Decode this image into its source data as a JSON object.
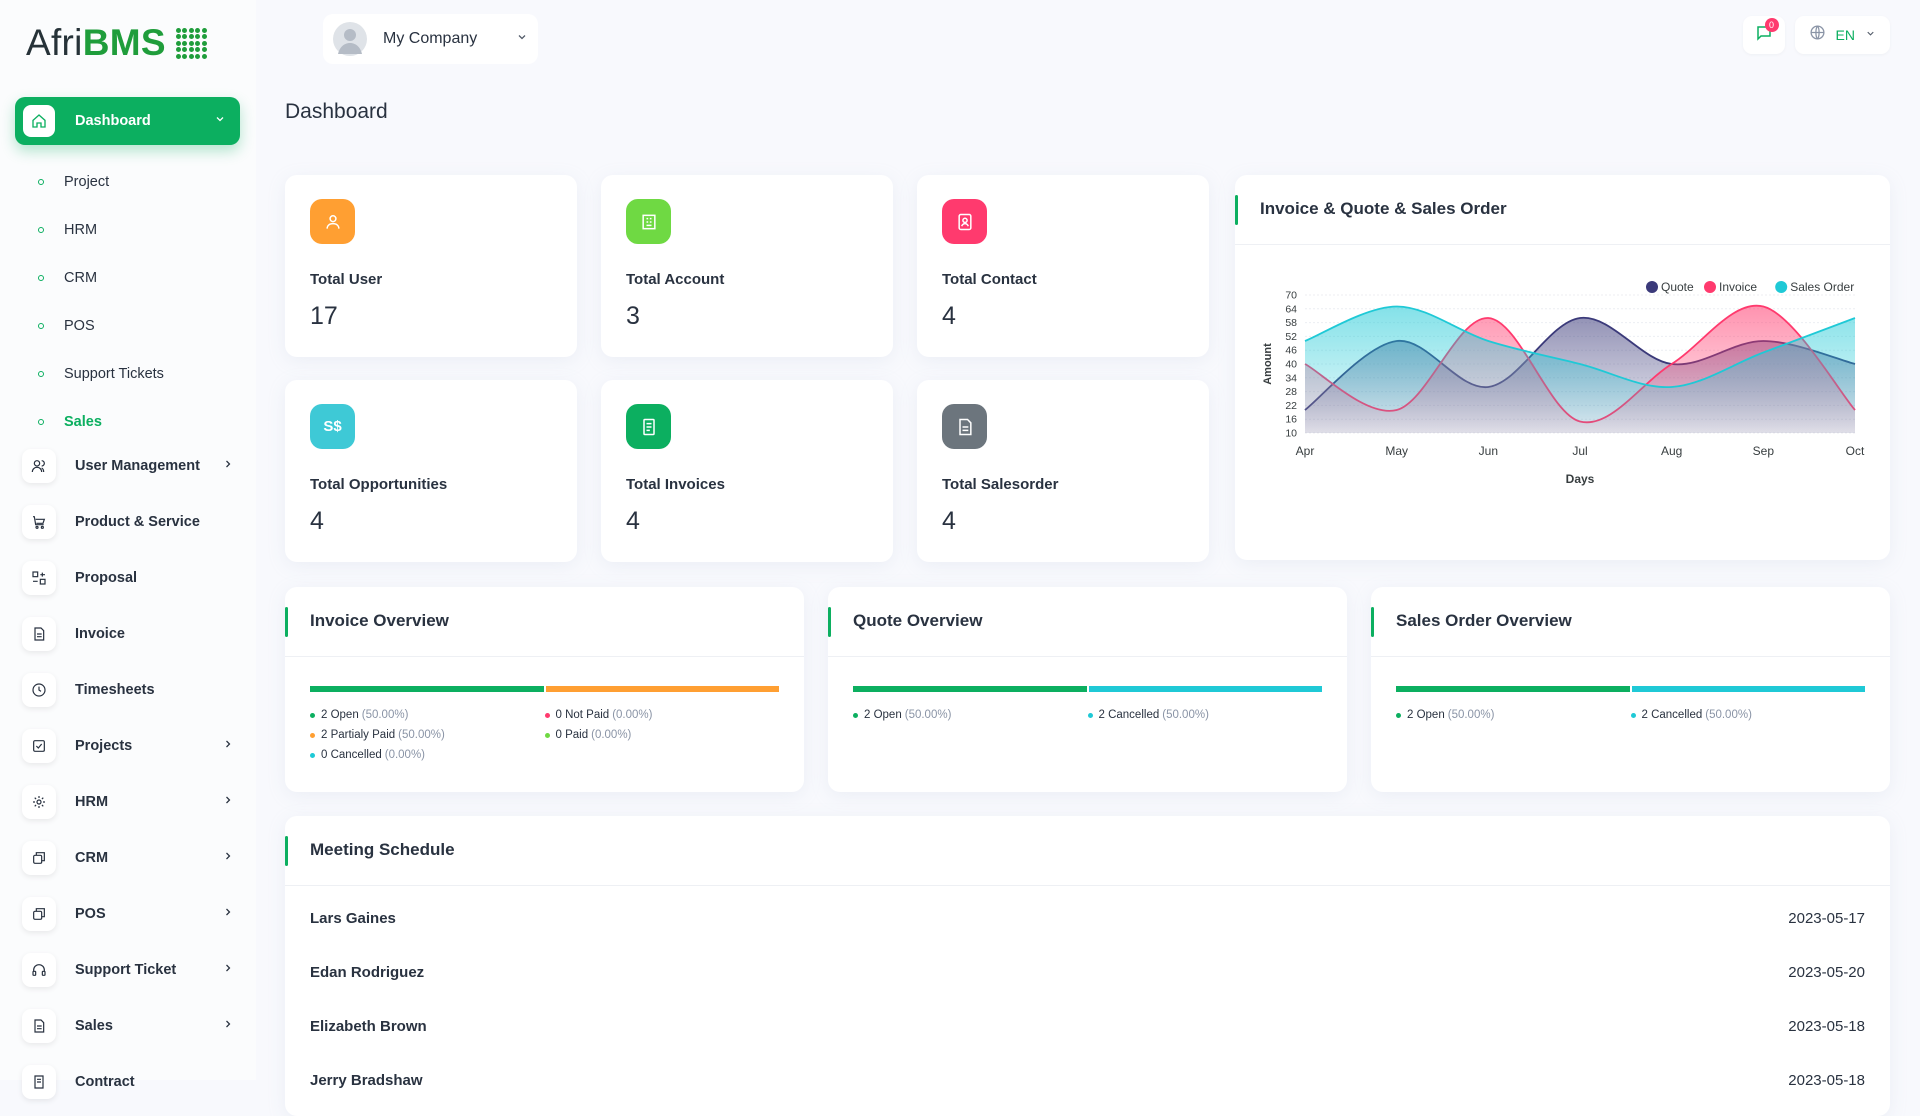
{
  "logo": {
    "part1": "Afri",
    "part2": "BMS"
  },
  "sidebar": {
    "active": {
      "label": "Dashboard"
    },
    "sub_items": [
      "Project",
      "HRM",
      "CRM",
      "POS",
      "Support Tickets",
      "Sales"
    ],
    "items": [
      {
        "label": "User Management",
        "icon": "users-icon",
        "has_chevron": true
      },
      {
        "label": "Product & Service",
        "icon": "cart-icon",
        "has_chevron": false
      },
      {
        "label": "Proposal",
        "icon": "proposal-icon",
        "has_chevron": false
      },
      {
        "label": "Invoice",
        "icon": "file-icon",
        "has_chevron": false
      },
      {
        "label": "Timesheets",
        "icon": "clock-icon",
        "has_chevron": false
      },
      {
        "label": "Projects",
        "icon": "checkbox-icon",
        "has_chevron": true
      },
      {
        "label": "HRM",
        "icon": "settings-icon",
        "has_chevron": true
      },
      {
        "label": "CRM",
        "icon": "layers-icon",
        "has_chevron": true
      },
      {
        "label": "POS",
        "icon": "layers-icon",
        "has_chevron": true
      },
      {
        "label": "Support Ticket",
        "icon": "headphones-icon",
        "has_chevron": true
      },
      {
        "label": "Sales",
        "icon": "file-icon",
        "has_chevron": true
      },
      {
        "label": "Contract",
        "icon": "contract-icon",
        "has_chevron": false
      }
    ]
  },
  "header": {
    "company": "My Company",
    "notifications": "0",
    "language": "EN"
  },
  "page": {
    "title": "Dashboard"
  },
  "stats": [
    {
      "label": "Total User",
      "value": "17",
      "color": "#ff9f32",
      "icon": "user-icon"
    },
    {
      "label": "Total Account",
      "value": "3",
      "color": "#6fd943",
      "icon": "building-icon"
    },
    {
      "label": "Total Contact",
      "value": "4",
      "color": "#ff3a6e",
      "icon": "contact-icon"
    },
    {
      "label": "Total Opportunities",
      "value": "4",
      "color": "#3ec9d6",
      "icon": "currency-icon",
      "glyph": "S$"
    },
    {
      "label": "Total Invoices",
      "value": "4",
      "color": "#0caf60",
      "icon": "invoice-icon"
    },
    {
      "label": "Total Salesorder",
      "value": "4",
      "color": "#6c757d",
      "icon": "order-icon"
    }
  ],
  "chart": {
    "title": "Invoice & Quote & Sales Order",
    "chart_data": {
      "type": "area",
      "x": [
        "Apr",
        "May",
        "Jun",
        "Jul",
        "Aug",
        "Sep",
        "Oct"
      ],
      "xlabel": "Days",
      "ylabel": "Amount",
      "yticks": [
        10,
        16,
        22,
        28,
        34,
        40,
        46,
        52,
        58,
        64,
        70
      ],
      "ylim": [
        10,
        70
      ],
      "legend": "top-right",
      "series": [
        {
          "name": "Quote",
          "color": "#3b3a7a",
          "values": [
            20,
            50,
            30,
            60,
            40,
            50,
            40
          ]
        },
        {
          "name": "Invoice",
          "color": "#ff3a6e",
          "values": [
            40,
            20,
            60,
            15,
            40,
            65,
            20
          ]
        },
        {
          "name": "Sales Order",
          "color": "#1fc9d6",
          "values": [
            50,
            65,
            50,
            40,
            30,
            45,
            60
          ]
        }
      ]
    }
  },
  "overviews": [
    {
      "title": "Invoice Overview",
      "bar": [
        {
          "value": 50,
          "color": "#0caf60"
        },
        {
          "value": 50,
          "color": "#ff9f32"
        }
      ],
      "legend": [
        {
          "label": "2 Open",
          "pct": "(50.00%)",
          "color": "#0caf60"
        },
        {
          "label": "0 Not Paid",
          "pct": "(0.00%)",
          "color": "#ff3a6e"
        },
        {
          "label": "2 Partialy Paid",
          "pct": "(50.00%)",
          "color": "#ff9f32"
        },
        {
          "label": "0 Paid",
          "pct": "(0.00%)",
          "color": "#6fd943"
        },
        {
          "label": "0 Cancelled",
          "pct": "(0.00%)",
          "color": "#1fc9d6"
        }
      ]
    },
    {
      "title": "Quote Overview",
      "bar": [
        {
          "value": 50,
          "color": "#0caf60"
        },
        {
          "value": 50,
          "color": "#1fc9d6"
        }
      ],
      "legend": [
        {
          "label": "2 Open",
          "pct": "(50.00%)",
          "color": "#0caf60"
        },
        {
          "label": "2 Cancelled",
          "pct": "(50.00%)",
          "color": "#1fc9d6"
        }
      ]
    },
    {
      "title": "Sales Order Overview",
      "bar": [
        {
          "value": 50,
          "color": "#0caf60"
        },
        {
          "value": 50,
          "color": "#1fc9d6"
        }
      ],
      "legend": [
        {
          "label": "2 Open",
          "pct": "(50.00%)",
          "color": "#0caf60"
        },
        {
          "label": "2 Cancelled",
          "pct": "(50.00%)",
          "color": "#1fc9d6"
        }
      ]
    }
  ],
  "meetings": {
    "title": "Meeting Schedule",
    "rows": [
      {
        "name": "Lars Gaines",
        "date": "2023-05-17"
      },
      {
        "name": "Edan Rodriguez",
        "date": "2023-05-20"
      },
      {
        "name": "Elizabeth Brown",
        "date": "2023-05-18"
      },
      {
        "name": "Jerry Bradshaw",
        "date": "2023-05-18"
      }
    ]
  },
  "colors": {
    "accent": "#0caf60"
  }
}
